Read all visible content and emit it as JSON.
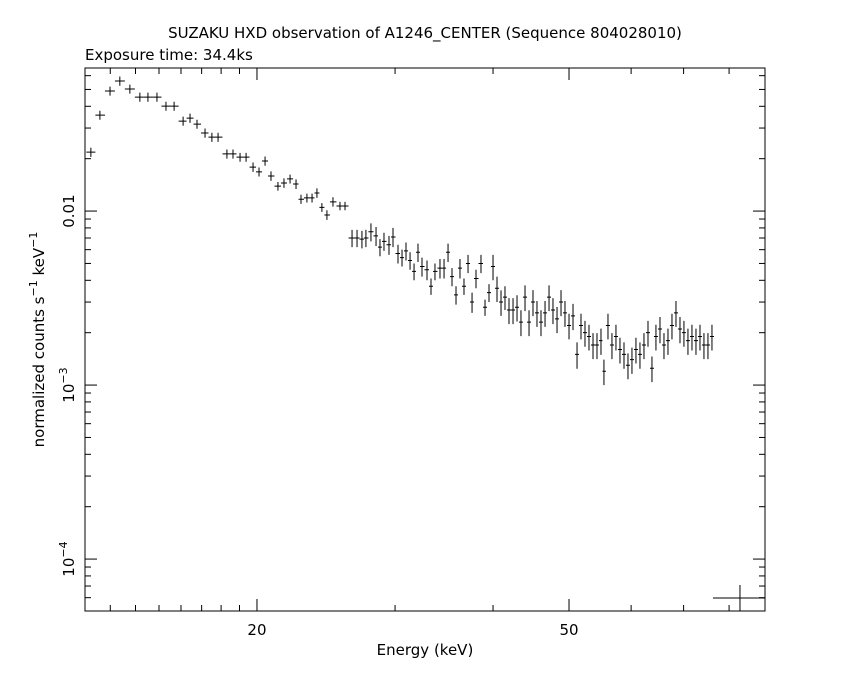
{
  "chart_data": {
    "type": "errorbar",
    "title": "SUZAKU HXD observation of A1246_CENTER (Sequence 804028010)",
    "subtitle": "Exposure time: 34.4ks",
    "xlabel": "Energy (keV)",
    "ylabel": [
      "normalized counts s",
      "−1",
      " keV",
      "−1"
    ],
    "xscale": "log",
    "yscale": "log",
    "xlim": [
      12.07,
      88.9
    ],
    "ylim": [
      5.03e-05,
      0.0664
    ],
    "xticks": [
      20,
      50
    ],
    "xminorticks": [
      13,
      14,
      15,
      16,
      17,
      18,
      19,
      30,
      40,
      60,
      70,
      80
    ],
    "yticks": [
      {
        "value": 0.0001,
        "label": "10",
        "exponent": "−4"
      },
      {
        "value": 0.001,
        "label": "10",
        "exponent": "−3"
      },
      0.01
    ],
    "yminorticks": [
      6e-05,
      7e-05,
      8e-05,
      9e-05,
      0.0002,
      0.0003,
      0.0004,
      0.0005,
      0.0006,
      0.0007,
      0.0008,
      0.0009,
      0.002,
      0.003,
      0.004,
      0.005,
      0.006,
      0.007,
      0.008,
      0.009,
      0.02,
      0.03,
      0.04,
      0.05,
      0.06
    ],
    "x": [
      12.28,
      12.61,
      12.99,
      13.37,
      13.77,
      14.18,
      14.52,
      14.91,
      15.31,
      15.68,
      16.1,
      16.43,
      16.77,
      17.17,
      17.52,
      17.84,
      18.31,
      18.64,
      19.03,
      19.37,
      19.77,
      20.12,
      20.48,
      20.84,
      21.27,
      21.65,
      22.04,
      22.43,
      22.76,
      23.16,
      23.51,
      23.85,
      24.2,
      24.56,
      25.0,
      25.52,
      25.9,
      26.44,
      26.83,
      27.22,
      27.54,
      27.95,
      28.37,
      28.7,
      29.04,
      29.47,
      29.82,
      30.26,
      30.62,
      30.98,
      31.35,
      31.72,
      32.09,
      32.47,
      32.95,
      33.34,
      33.73,
      34.23,
      34.64,
      35.05,
      35.46,
      35.88,
      36.3,
      36.73,
      37.17,
      37.61,
      38.05,
      38.61,
      39.07,
      39.53,
      40.0,
      40.47,
      40.95,
      41.43,
      41.92,
      42.42,
      42.92,
      43.42,
      43.94,
      44.46,
      44.98,
      45.51,
      46.05,
      46.6,
      47.15,
      47.7,
      48.27,
      48.84,
      49.41,
      50.0,
      50.59,
      51.19,
      51.79,
      52.4,
      53.02,
      53.65,
      54.28,
      54.92,
      55.4,
      56.06,
      56.72,
      57.39,
      58.07,
      58.76,
      59.45,
      60.15,
      60.86,
      61.58,
      62.31,
      63.05,
      63.79,
      64.54,
      65.31,
      66.08,
      66.86,
      67.65,
      68.45,
      69.26,
      70.07,
      70.9,
      71.74,
      72.59,
      73.45,
      74.31,
      75.19,
      76.08
    ],
    "series": [
      {
        "color": "#000000",
        "values": [
          0.0218,
          0.0356,
          0.049,
          0.0559,
          0.0503,
          0.0452,
          0.0452,
          0.0452,
          0.0401,
          0.0401,
          0.0329,
          0.0342,
          0.0316,
          0.0281,
          0.0266,
          0.0266,
          0.0213,
          0.0213,
          0.0204,
          0.0204,
          0.0179,
          0.0168,
          0.0194,
          0.0159,
          0.0139,
          0.0145,
          0.0153,
          0.0143,
          0.0117,
          0.0119,
          0.0119,
          0.0127,
          0.0105,
          0.0095,
          0.0113,
          0.0107,
          0.0107,
          0.007,
          0.007,
          0.0069,
          0.007,
          0.0076,
          0.0072,
          0.0062,
          0.0067,
          0.0064,
          0.0071,
          0.0057,
          0.0054,
          0.0059,
          0.0052,
          0.0045,
          0.0058,
          0.0048,
          0.0046,
          0.0037,
          0.0045,
          0.0047,
          0.0047,
          0.0058,
          0.0042,
          0.0033,
          0.0047,
          0.0037,
          0.005,
          0.003,
          0.0041,
          0.005,
          0.0028,
          0.0034,
          0.0048,
          0.0036,
          0.003,
          0.0032,
          0.0027,
          0.0027,
          0.0028,
          0.0023,
          0.0032,
          0.0023,
          0.003,
          0.0026,
          0.0023,
          0.0026,
          0.0032,
          0.0027,
          0.0024,
          0.003,
          0.0026,
          0.0022,
          0.0025,
          0.0015,
          0.0022,
          0.002,
          0.0019,
          0.0017,
          0.0017,
          0.0018,
          0.0012,
          0.0022,
          0.0017,
          0.0019,
          0.0016,
          0.0015,
          0.0013,
          0.0014,
          0.0016,
          0.0015,
          0.0017,
          0.002,
          0.00125,
          0.0019,
          0.0021,
          0.0017,
          0.0018,
          0.0022,
          0.0026,
          0.0021,
          0.002,
          0.0018,
          0.0019,
          0.0018,
          0.0019,
          0.0017,
          0.0017,
          0.0019
        ],
        "yerr": [
          0.0013,
          0.0021,
          0.0029,
          0.0034,
          0.003,
          0.0027,
          0.0027,
          0.0027,
          0.0024,
          0.0024,
          0.002,
          0.0021,
          0.0019,
          0.0017,
          0.0016,
          0.0016,
          0.0013,
          0.0013,
          0.0012,
          0.0012,
          0.0011,
          0.001,
          0.0012,
          0.001,
          0.0008,
          0.0009,
          0.0009,
          0.0009,
          0.0007,
          0.0007,
          0.0007,
          0.0008,
          0.0006,
          0.0006,
          0.0007,
          0.0006,
          0.0006,
          0.0008,
          0.0008,
          0.0008,
          0.0008,
          0.0009,
          0.0009,
          0.0007,
          0.0008,
          0.0008,
          0.0009,
          0.0007,
          0.0006,
          0.0007,
          0.0006,
          0.0005,
          0.0007,
          0.0006,
          0.0006,
          0.0004,
          0.0005,
          0.0006,
          0.0006,
          0.0007,
          0.0005,
          0.0004,
          0.0006,
          0.0004,
          0.0006,
          0.0004,
          0.0005,
          0.0006,
          0.0003,
          0.0004,
          0.0008,
          0.0006,
          0.0005,
          0.0005,
          0.00046,
          0.00046,
          0.00048,
          0.00039,
          0.00054,
          0.00039,
          0.00051,
          0.00044,
          0.00039,
          0.00044,
          0.00054,
          0.00046,
          0.00041,
          0.00051,
          0.00044,
          0.00037,
          0.00043,
          0.00026,
          0.00037,
          0.00034,
          0.00032,
          0.00029,
          0.00029,
          0.00031,
          0.0002,
          0.00037,
          0.00029,
          0.00032,
          0.00027,
          0.00026,
          0.00022,
          0.00024,
          0.00027,
          0.00026,
          0.00029,
          0.00034,
          0.00021,
          0.00032,
          0.00036,
          0.00029,
          0.00031,
          0.00037,
          0.00044,
          0.00036,
          0.00034,
          0.00031,
          0.00032,
          0.00031,
          0.00032,
          0.00029,
          0.00029,
          0.00032
        ]
      }
    ],
    "reference_point": {
      "x": 82.6,
      "y": 5.97e-05
    }
  }
}
